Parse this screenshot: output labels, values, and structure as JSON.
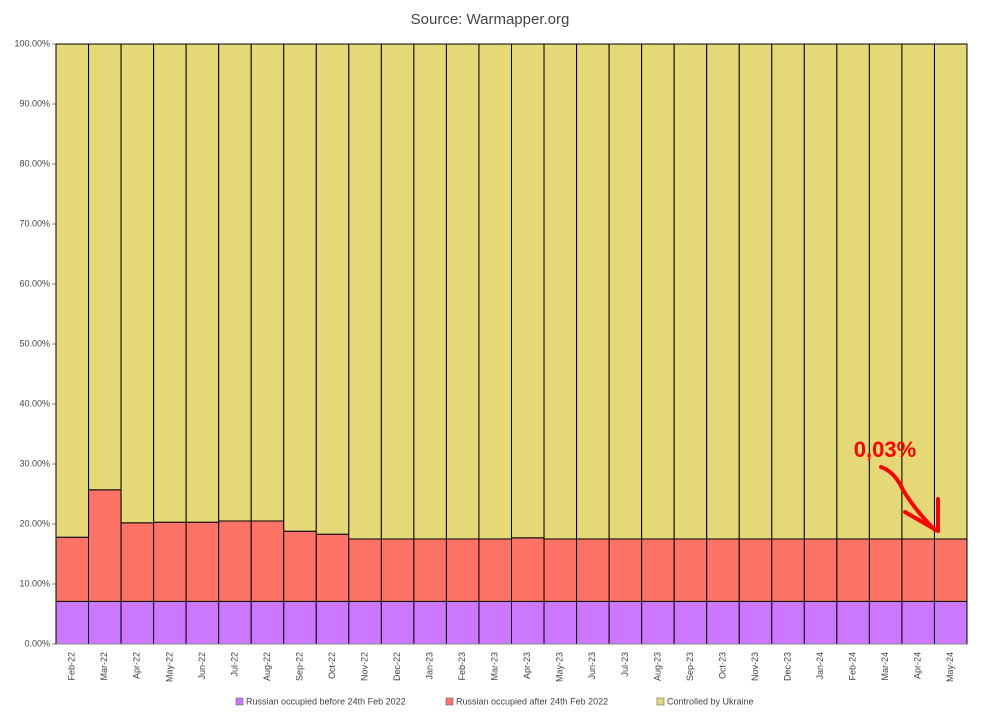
{
  "chart_data": {
    "type": "stacked_bar",
    "title": "Source: Warmapper.org",
    "categories": [
      "Feb-22",
      "Mar-22",
      "Apr-22",
      "May-22",
      "Jun-22",
      "Jul-22",
      "Aug-22",
      "Sep-22",
      "Oct-22",
      "Nov-22",
      "Dec-22",
      "Jan-23",
      "Feb-23",
      "Mar-23",
      "Apr-23",
      "May-23",
      "Jun-23",
      "Jul-23",
      "Aug-23",
      "Sep-23",
      "Oct-23",
      "Nov-23",
      "Dec-23",
      "Jan-24",
      "Feb-24",
      "Mar-24",
      "Apr-24",
      "May-24"
    ],
    "series": [
      {
        "name": "Russian occupied before 24th Feb 2022",
        "color": "#cc77ff",
        "values": [
          7.1,
          7.1,
          7.1,
          7.1,
          7.1,
          7.1,
          7.1,
          7.1,
          7.1,
          7.1,
          7.1,
          7.1,
          7.1,
          7.1,
          7.1,
          7.1,
          7.1,
          7.1,
          7.1,
          7.1,
          7.1,
          7.1,
          7.1,
          7.1,
          7.1,
          7.1,
          7.1,
          7.1
        ]
      },
      {
        "name": "Russian occupied after 24th Feb 2022",
        "color": "#ff7266",
        "values": [
          10.7,
          18.6,
          13.1,
          13.2,
          13.2,
          13.4,
          13.4,
          11.7,
          11.2,
          10.4,
          10.4,
          10.4,
          10.4,
          10.4,
          10.6,
          10.4,
          10.4,
          10.4,
          10.4,
          10.4,
          10.4,
          10.4,
          10.4,
          10.4,
          10.4,
          10.4,
          10.4,
          10.4
        ]
      },
      {
        "name": "Controlled by Ukraine",
        "color": "#e4d877",
        "values": [
          82.2,
          74.3,
          79.8,
          79.7,
          79.7,
          79.5,
          79.5,
          81.2,
          81.7,
          82.5,
          82.5,
          82.5,
          82.5,
          82.5,
          82.3,
          82.5,
          82.5,
          82.5,
          82.5,
          82.5,
          82.5,
          82.5,
          82.5,
          82.5,
          82.5,
          82.5,
          82.5,
          82.5
        ]
      }
    ],
    "ylim": [
      0,
      100
    ],
    "yticks": [
      {
        "value": 0,
        "label": "0.00%"
      },
      {
        "value": 10,
        "label": "10.00%"
      },
      {
        "value": 20,
        "label": "20.00%"
      },
      {
        "value": 30,
        "label": "30.00%"
      },
      {
        "value": 40,
        "label": "40.00%"
      },
      {
        "value": 50,
        "label": "50.00%"
      },
      {
        "value": 60,
        "label": "60.00%"
      },
      {
        "value": 70,
        "label": "70.00%"
      },
      {
        "value": 80,
        "label": "80.00%"
      },
      {
        "value": 90,
        "label": "90.00%"
      },
      {
        "value": 100,
        "label": "100.00%"
      }
    ],
    "annotation": "0,03%"
  }
}
